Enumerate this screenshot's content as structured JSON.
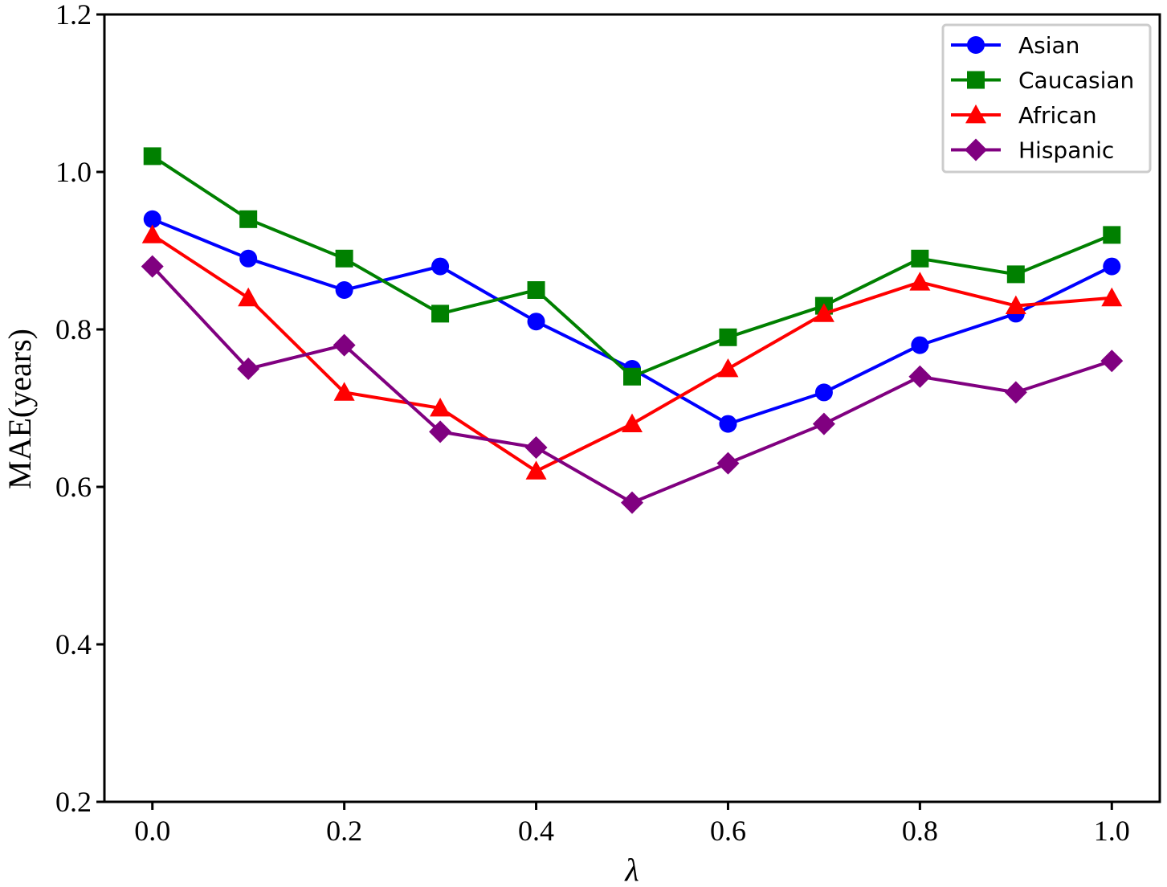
{
  "chart_data": {
    "type": "line",
    "x": [
      0.0,
      0.1,
      0.2,
      0.3,
      0.4,
      0.5,
      0.6,
      0.7,
      0.8,
      0.9,
      1.0
    ],
    "xlabel": "λ",
    "ylabel": "MAE(years)",
    "xlim": [
      -0.05,
      1.05
    ],
    "ylim": [
      0.2,
      1.2
    ],
    "xticks": [
      "0.0",
      "0.2",
      "0.4",
      "0.6",
      "0.8",
      "1.0"
    ],
    "yticks": [
      "0.2",
      "0.4",
      "0.6",
      "0.8",
      "1.0",
      "1.2"
    ],
    "grid": false,
    "legend_position": "top-right",
    "series": [
      {
        "name": "Asian",
        "color": "#0000ff",
        "marker": "circle",
        "values": [
          0.94,
          0.89,
          0.85,
          0.88,
          0.81,
          0.75,
          0.68,
          0.72,
          0.78,
          0.82,
          0.88
        ]
      },
      {
        "name": "Caucasian",
        "color": "#008000",
        "marker": "square",
        "values": [
          1.02,
          0.94,
          0.89,
          0.82,
          0.85,
          0.74,
          0.79,
          0.83,
          0.89,
          0.87,
          0.92
        ]
      },
      {
        "name": "African",
        "color": "#ff0000",
        "marker": "triangle",
        "values": [
          0.92,
          0.84,
          0.72,
          0.7,
          0.62,
          0.68,
          0.75,
          0.82,
          0.86,
          0.83,
          0.84
        ]
      },
      {
        "name": "Hispanic",
        "color": "#800080",
        "marker": "diamond",
        "values": [
          0.88,
          0.75,
          0.78,
          0.67,
          0.65,
          0.58,
          0.63,
          0.68,
          0.74,
          0.72,
          0.76
        ]
      }
    ]
  }
}
